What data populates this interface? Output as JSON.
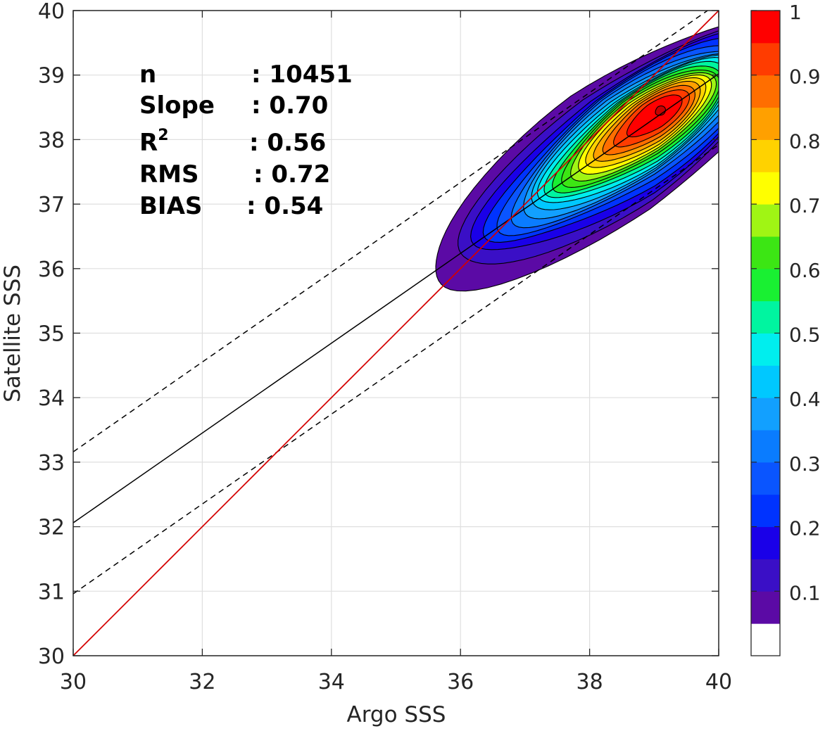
{
  "chart_data": {
    "type": "contour",
    "xlabel": "Argo SSS",
    "ylabel": "Satellite SSS",
    "xlim": [
      30,
      40
    ],
    "ylim": [
      30,
      40
    ],
    "xticks": [
      "30",
      "32",
      "34",
      "36",
      "38",
      "40"
    ],
    "yticks": [
      "30",
      "31",
      "32",
      "33",
      "34",
      "35",
      "36",
      "37",
      "38",
      "39",
      "40"
    ],
    "grid": true,
    "lines": {
      "one_to_one": {
        "slope": 1,
        "intercept": 0,
        "color": "#d40000"
      },
      "regression": {
        "points": [
          [
            30,
            32.06
          ],
          [
            40,
            39.02
          ]
        ],
        "color": "#000000"
      },
      "upper_bound": {
        "points": [
          [
            30,
            33.16
          ],
          [
            40,
            40.12
          ]
        ],
        "color": "#000000",
        "dash": true
      },
      "lower_bound": {
        "points": [
          [
            30,
            30.96
          ],
          [
            40,
            37.92
          ]
        ],
        "color": "#000000",
        "dash": true
      }
    },
    "density_center": [
      39.1,
      38.45
    ],
    "colorbar": {
      "min": 0,
      "max": 1,
      "step": 0.05,
      "tick_values": [
        0.1,
        0.2,
        0.3,
        0.4,
        0.5,
        0.6,
        0.7,
        0.8,
        0.9,
        1
      ],
      "tick_labels": [
        "0.1",
        "0.2",
        "0.3",
        "0.4",
        "0.5",
        "0.6",
        "0.7",
        "0.8",
        "0.9",
        "1"
      ],
      "colors": [
        "#ffffff",
        "#5b0aa5",
        "#3a0fc6",
        "#1a00e8",
        "#0033ff",
        "#0a55ff",
        "#0a7cff",
        "#12a0ff",
        "#00c8ff",
        "#00eeee",
        "#00f5a0",
        "#19f032",
        "#3ce614",
        "#a0f514",
        "#ffff00",
        "#ffd200",
        "#ffa000",
        "#ff6e00",
        "#ff3c00",
        "#ff0000",
        "#c80000",
        "#800000"
      ]
    },
    "stats": [
      {
        "name": "n",
        "value": ": 10451"
      },
      {
        "name": "Slope",
        "value": ": 0.70"
      },
      {
        "name": "R",
        "sup": "2",
        "value": ": 0.56"
      },
      {
        "name": "RMS",
        "value": ": 0.72"
      },
      {
        "name": "BIAS",
        "value": ": 0.54"
      }
    ]
  }
}
